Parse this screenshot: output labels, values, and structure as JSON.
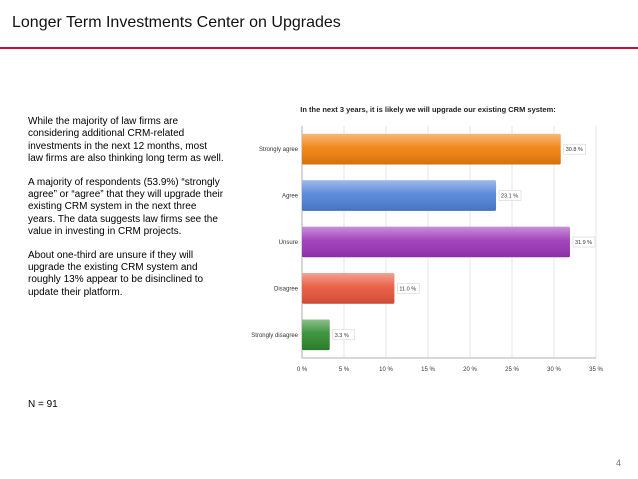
{
  "slide": {
    "title": "Longer Term Investments Center on Upgrades",
    "paragraphs": [
      "While the majority of law firms are considering additional CRM-related investments in the next 12 months, most law firms are also thinking long term as well.",
      "A majority of respondents (53.9%) “strongly agree” or “agree” that they will upgrade their existing CRM system in the next three years.  The data suggests law firms see the value in investing in CRM projects.",
      "About one-third are unsure if they will upgrade the existing CRM system and roughly 13% appear to be disinclined to update their platform."
    ],
    "n_label": "N = 91",
    "page_number": "4",
    "accent_color": "#c8102e"
  },
  "chart_data": {
    "type": "bar",
    "orientation": "horizontal",
    "title": "In the next 3 years, it is likely we will upgrade our existing CRM system:",
    "categories": [
      "Strongly agree",
      "Agree",
      "Unsure",
      "Disagree",
      "Strongly disagree"
    ],
    "values": [
      30.8,
      23.1,
      31.9,
      11.0,
      3.3
    ],
    "value_labels": [
      "30.8 %",
      "23.1 %",
      "31.9 %",
      "11.0 %",
      "3.3 %"
    ],
    "colors": [
      "#f07f09",
      "#4f81d9",
      "#9b35b8",
      "#e8553a",
      "#2e8b2e"
    ],
    "xlim": [
      0,
      35
    ],
    "xticks": [
      0,
      5,
      10,
      15,
      20,
      25,
      30,
      35
    ],
    "xtick_labels": [
      "0 %",
      "5 %",
      "10 %",
      "15 %",
      "20 %",
      "25 %",
      "30 %",
      "35 %"
    ],
    "grid": "vertical",
    "xlabel": "",
    "ylabel": ""
  }
}
